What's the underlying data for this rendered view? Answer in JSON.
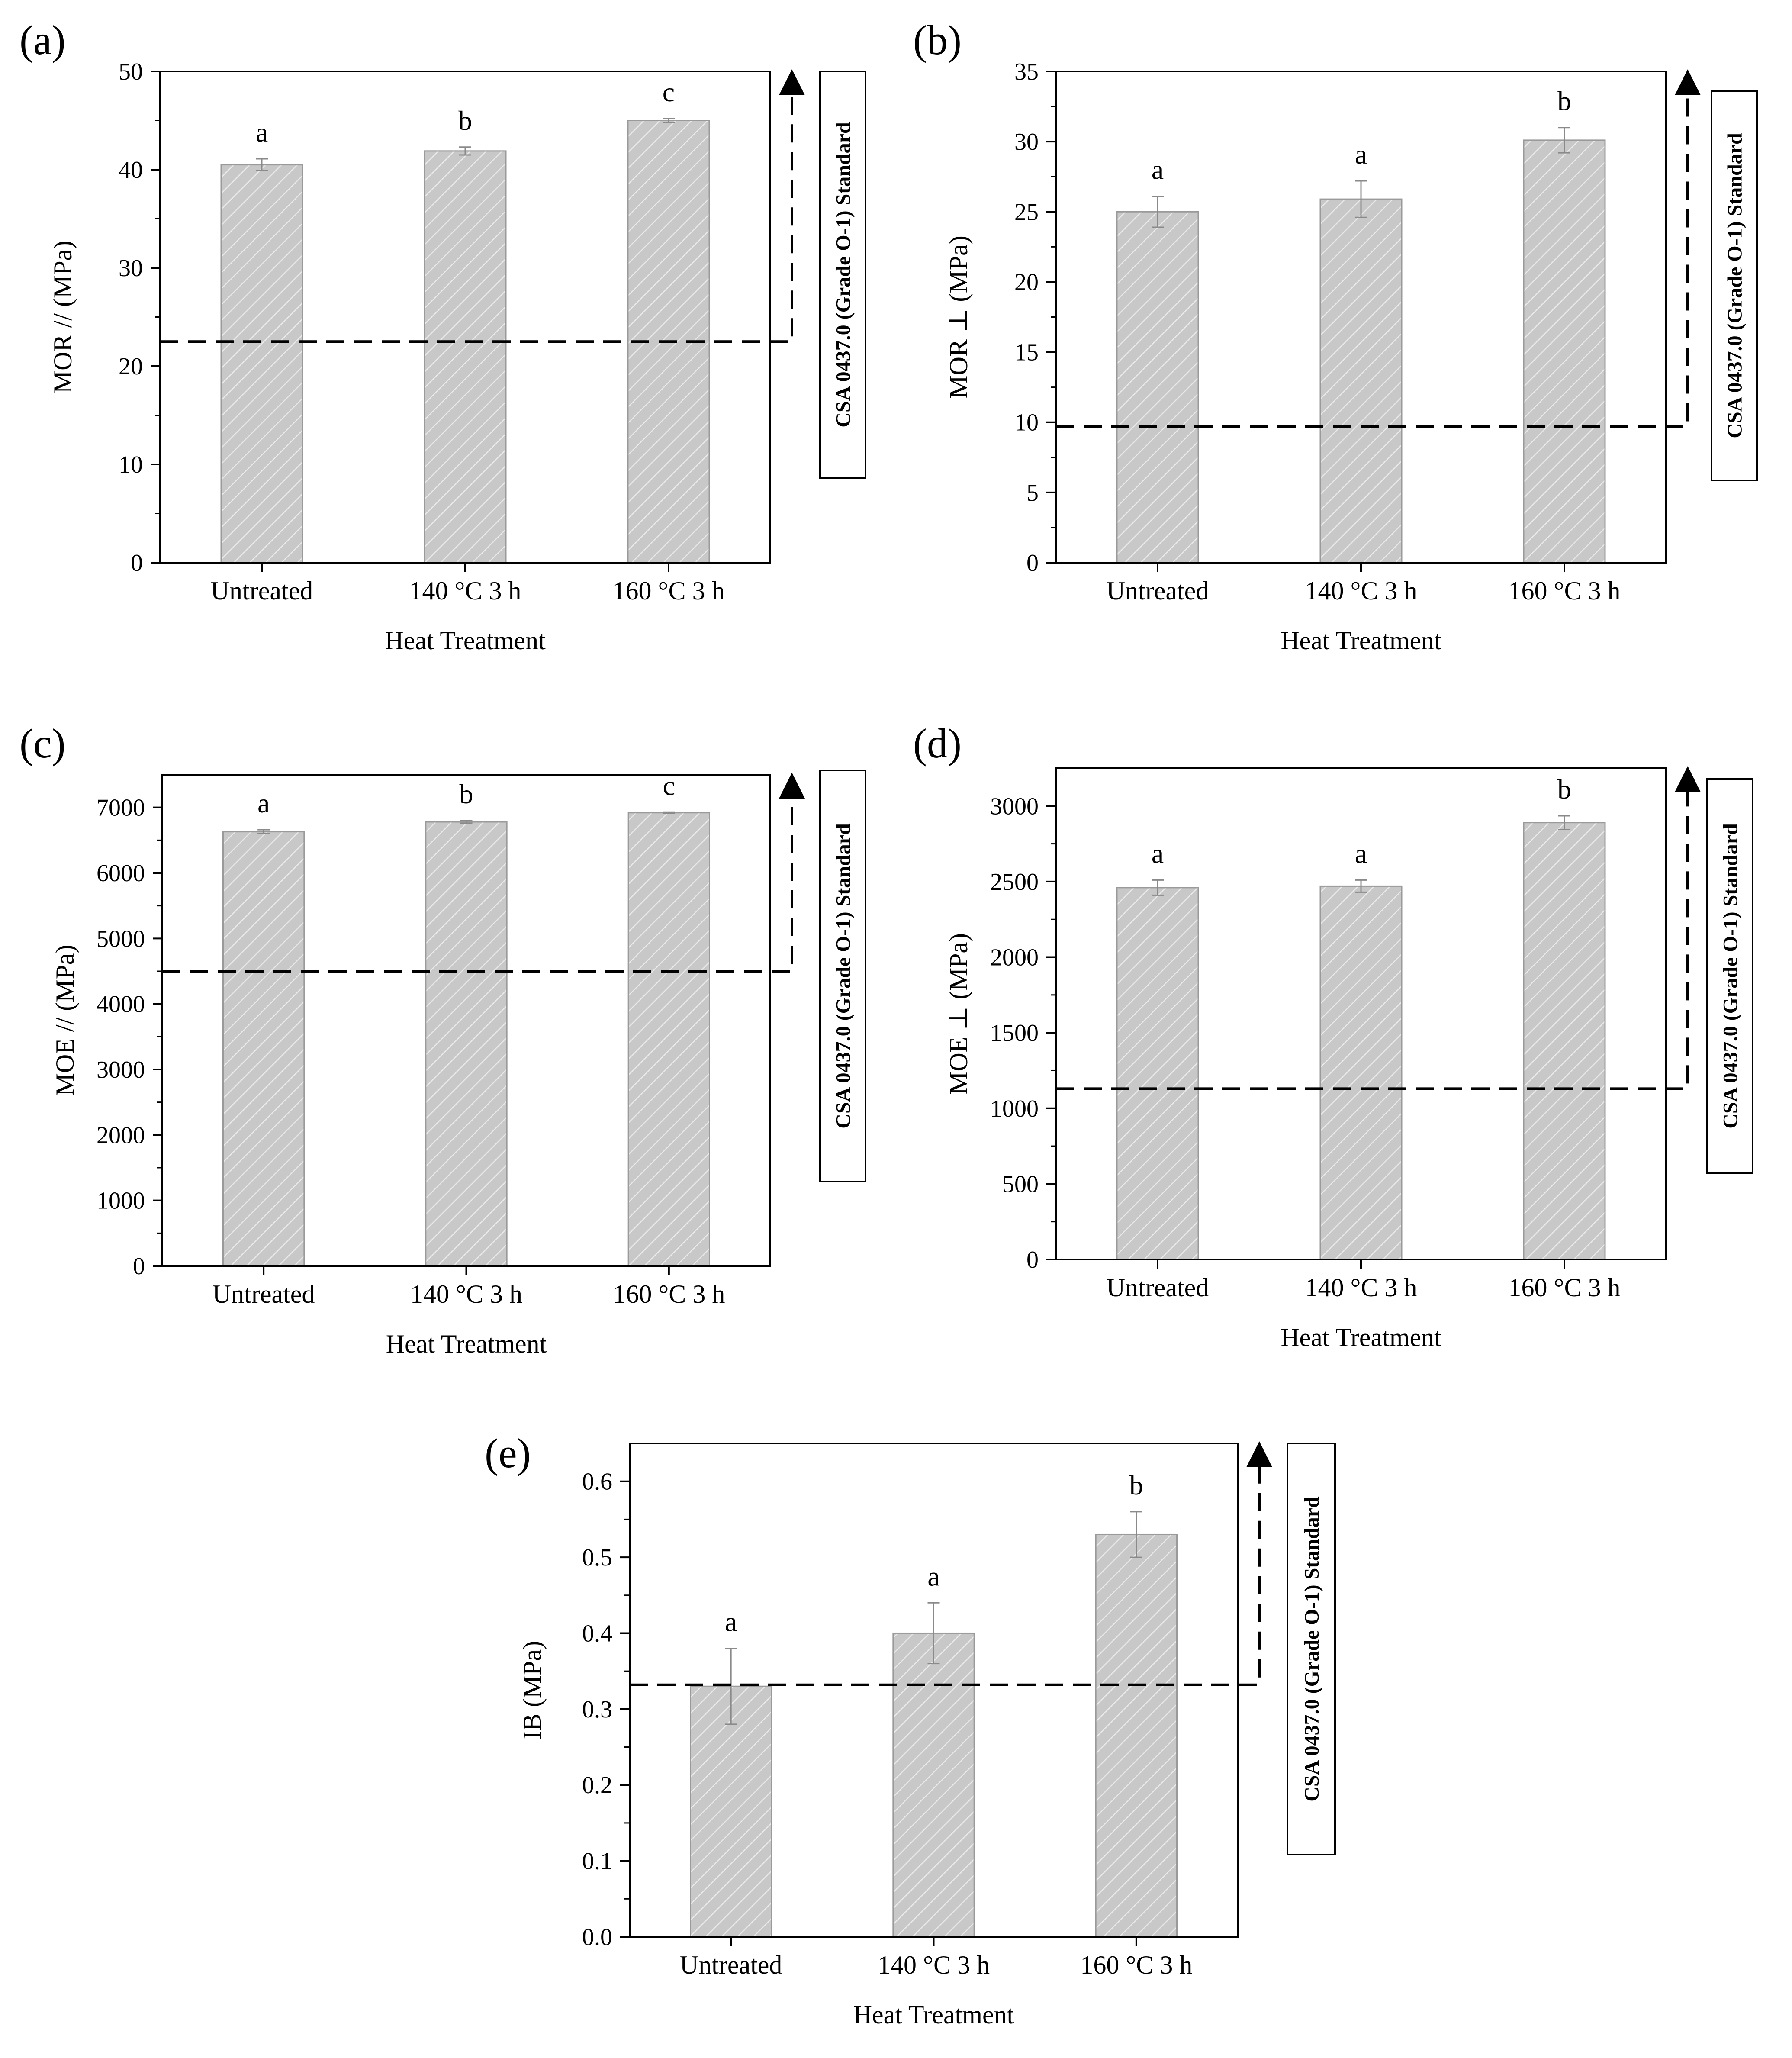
{
  "figure": {
    "panels": [
      {
        "id": "a",
        "panel_label": "(a)",
        "standard_label": "CSA 0437.0 (Grade O-1) Standard",
        "chart_data": {
          "type": "bar",
          "categories": [
            "Untreated",
            "140 °C 3 h",
            "160 °C 3 h"
          ],
          "values": [
            40.5,
            41.9,
            45.0
          ],
          "errors": [
            0.6,
            0.4,
            0.2
          ],
          "significance": [
            "a",
            "b",
            "c"
          ],
          "xlabel": "Heat Treatment",
          "ylabel": "MOR // (MPa)",
          "ylim": [
            0,
            50
          ],
          "yticks": [
            0,
            10,
            20,
            30,
            40,
            50
          ],
          "yticks_text": [
            "0",
            "10",
            "20",
            "30",
            "40",
            "50"
          ],
          "reference_line": 22.5
        }
      },
      {
        "id": "b",
        "panel_label": "(b)",
        "standard_label": "CSA 0437.0 (Grade O-1) Standard",
        "chart_data": {
          "type": "bar",
          "categories": [
            "Untreated",
            "140 °C 3 h",
            "160 °C 3 h"
          ],
          "values": [
            25.0,
            25.9,
            30.1
          ],
          "errors": [
            1.1,
            1.3,
            0.9
          ],
          "significance": [
            "a",
            "a",
            "b"
          ],
          "xlabel": "Heat Treatment",
          "ylabel": "MOR ⊥ (MPa)",
          "ylim": [
            0,
            35
          ],
          "yticks": [
            0,
            5,
            10,
            15,
            20,
            25,
            30,
            35
          ],
          "yticks_text": [
            "0",
            "5",
            "10",
            "15",
            "20",
            "25",
            "30",
            "35"
          ],
          "reference_line": 9.7
        }
      },
      {
        "id": "c",
        "panel_label": "(c)",
        "standard_label": "CSA 0437.0 (Grade O-1) Standard",
        "chart_data": {
          "type": "bar",
          "categories": [
            "Untreated",
            "140 °C 3 h",
            "160 °C 3 h"
          ],
          "values": [
            6630,
            6780,
            6920
          ],
          "errors": [
            30,
            20,
            10
          ],
          "significance": [
            "a",
            "b",
            "c"
          ],
          "xlabel": "Heat Treatment",
          "ylabel": "MOE // (MPa)",
          "ylim": [
            0,
            7500
          ],
          "yticks": [
            0,
            1000,
            2000,
            3000,
            4000,
            5000,
            6000,
            7000
          ],
          "yticks_text": [
            "0",
            "1000",
            "2000",
            "3000",
            "4000",
            "5000",
            "6000",
            "7000"
          ],
          "reference_line": 4500
        }
      },
      {
        "id": "d",
        "panel_label": "(d)",
        "standard_label": "CSA 0437.0 (Grade O-1) Standard",
        "chart_data": {
          "type": "bar",
          "categories": [
            "Untreated",
            "140 °C 3 h",
            "160 °C 3 h"
          ],
          "values": [
            2460,
            2470,
            2890
          ],
          "errors": [
            50,
            40,
            45
          ],
          "significance": [
            "a",
            "a",
            "b"
          ],
          "xlabel": "Heat Treatment",
          "ylabel": "MOE ⊥ (MPa)",
          "ylim": [
            0,
            3250
          ],
          "yticks": [
            0,
            500,
            1000,
            1500,
            2000,
            2500,
            3000
          ],
          "yticks_text": [
            "0",
            "500",
            "1000",
            "1500",
            "2000",
            "2500",
            "3000"
          ],
          "reference_line": 1130
        }
      },
      {
        "id": "e",
        "panel_label": "(e)",
        "standard_label": "CSA 0437.0 (Grade O-1) Standard",
        "chart_data": {
          "type": "bar",
          "categories": [
            "Untreated",
            "140 °C 3 h",
            "160 °C 3 h"
          ],
          "values": [
            0.33,
            0.4,
            0.53
          ],
          "errors": [
            0.05,
            0.04,
            0.03
          ],
          "significance": [
            "a",
            "a",
            "b"
          ],
          "xlabel": "Heat Treatment",
          "ylabel": "IB (MPa)",
          "ylim": [
            0,
            0.65
          ],
          "yticks": [
            0,
            0.1,
            0.2,
            0.3,
            0.4,
            0.5,
            0.6
          ],
          "yticks_text": [
            "0.0",
            "0.1",
            "0.2",
            "0.3",
            "0.4",
            "0.5",
            "0.6"
          ],
          "reference_line": 0.332
        }
      }
    ]
  }
}
